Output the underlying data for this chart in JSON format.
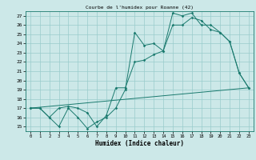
{
  "title": "Courbe de l'humidex pour Roanne (42)",
  "xlabel": "Humidex (Indice chaleur)",
  "bg_color": "#cce8e8",
  "grid_color": "#99cccc",
  "line_color": "#1a7a6e",
  "xlim": [
    -0.5,
    23.5
  ],
  "ylim": [
    14.5,
    27.5
  ],
  "xticks": [
    0,
    1,
    2,
    3,
    4,
    5,
    6,
    7,
    8,
    9,
    10,
    11,
    12,
    13,
    14,
    15,
    16,
    17,
    18,
    19,
    20,
    21,
    22,
    23
  ],
  "yticks": [
    15,
    16,
    17,
    18,
    19,
    20,
    21,
    22,
    23,
    24,
    25,
    26,
    27
  ],
  "line1_x": [
    0,
    1,
    2,
    3,
    4,
    5,
    6,
    7,
    8,
    9,
    10,
    11,
    12,
    13,
    14,
    15,
    16,
    17,
    18,
    19,
    20,
    21,
    22,
    23
  ],
  "line1_y": [
    17,
    17,
    16,
    15,
    17,
    16,
    14.8,
    15.5,
    16,
    17,
    19,
    25.2,
    23.8,
    24,
    23.2,
    27.3,
    27,
    27.3,
    26.0,
    26,
    25.2,
    24.2,
    20.8,
    19.2
  ],
  "line2_x": [
    0,
    1,
    2,
    3,
    4,
    5,
    6,
    7,
    8,
    9,
    10,
    11,
    12,
    13,
    14,
    15,
    16,
    17,
    18,
    19,
    20,
    21,
    22,
    23
  ],
  "line2_y": [
    17,
    17,
    16,
    17,
    17.2,
    17,
    16.5,
    15,
    16.2,
    19.2,
    19.2,
    22.0,
    22.2,
    22.8,
    23.2,
    26,
    26,
    26.8,
    26.5,
    25.5,
    25.2,
    24.2,
    20.8,
    19.2
  ],
  "line3_x": [
    0,
    23
  ],
  "line3_y": [
    17,
    19.2
  ]
}
